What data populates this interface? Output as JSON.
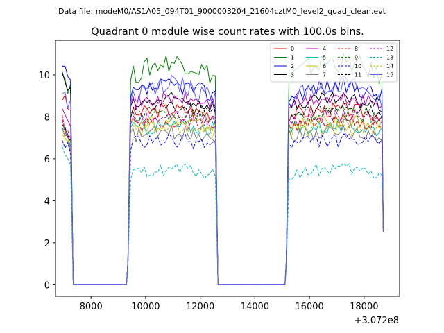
{
  "chart_data": {
    "type": "line",
    "suptitle": "Data file: modeM0/AS1A05_094T01_9000003204_21604cztM0_level2_quad_clean.evt",
    "title": "Quadrant 0 module wise count rates with 100.0s bins.",
    "xlabel": "",
    "ylabel": "",
    "x_offset_label": "+3.072e8",
    "xlim": [
      6700,
      19300
    ],
    "ylim": [
      -0.55,
      11.65
    ],
    "x_ticks": [
      8000,
      10000,
      12000,
      14000,
      16000,
      18000
    ],
    "x_tick_labels": [
      "8000",
      "10000",
      "12000",
      "14000",
      "16000",
      "18000"
    ],
    "y_ticks": [
      0,
      2,
      4,
      6,
      8,
      10
    ],
    "y_tick_labels": [
      "0",
      "2",
      "4",
      "6",
      "8",
      "10"
    ],
    "legend_position": "top-right",
    "segments": [
      {
        "start": 6950,
        "end": 7250
      },
      {
        "start": 9450,
        "end": 12550
      },
      {
        "start": 15250,
        "end": 18650
      }
    ],
    "gap_level": 0,
    "series": [
      {
        "name": "0",
        "color": "#ff0000",
        "dash": "solid",
        "level": 8.1,
        "amp": 0.35,
        "start_level": 9.0,
        "trend": 0.3
      },
      {
        "name": "1",
        "color": "#008000",
        "dash": "solid",
        "level": 9.9,
        "amp": 0.5,
        "start_level": 10.1,
        "trend": 0.9
      },
      {
        "name": "2",
        "color": "#0000ff",
        "dash": "solid",
        "level": 9.0,
        "amp": 0.4,
        "start_level": 10.3,
        "trend": 0.6
      },
      {
        "name": "3",
        "color": "#000000",
        "dash": "solid",
        "level": 8.5,
        "amp": 0.35,
        "start_level": 9.9,
        "trend": 0.4
      },
      {
        "name": "4",
        "color": "#bf00bf",
        "dash": "solid",
        "level": 8.6,
        "amp": 0.35,
        "start_level": 8.7,
        "trend": 0.3
      },
      {
        "name": "5",
        "color": "#00bfbf",
        "dash": "solid",
        "level": 7.4,
        "amp": 0.35,
        "start_level": 7.6,
        "trend": 0.2
      },
      {
        "name": "6",
        "color": "#bfbf00",
        "dash": "solid",
        "level": 7.6,
        "amp": 0.35,
        "start_level": 7.5,
        "trend": 0.2
      },
      {
        "name": "7",
        "color": "#808080",
        "dash": "solid",
        "level": 7.1,
        "amp": 0.35,
        "start_level": 7.3,
        "trend": 0.2
      },
      {
        "name": "8",
        "color": "#ff0000",
        "dash": "dash",
        "level": 7.6,
        "amp": 0.35,
        "start_level": 7.8,
        "trend": 0.2
      },
      {
        "name": "9",
        "color": "#008000",
        "dash": "dash",
        "level": 7.9,
        "amp": 0.35,
        "start_level": 7.7,
        "trend": 0.3
      },
      {
        "name": "10",
        "color": "#0000ff",
        "dash": "dash",
        "level": 6.7,
        "amp": 0.35,
        "start_level": 7.0,
        "trend": 0.2
      },
      {
        "name": "11",
        "color": "#000000",
        "dash": "dash",
        "level": 8.2,
        "amp": 0.3,
        "start_level": 7.6,
        "trend": 0.3
      },
      {
        "name": "12",
        "color": "#bf00bf",
        "dash": "dash",
        "level": 7.8,
        "amp": 0.3,
        "start_level": 7.7,
        "trend": 0.3
      },
      {
        "name": "13",
        "color": "#00bfbf",
        "dash": "dash",
        "level": 5.2,
        "amp": 0.3,
        "start_level": 6.3,
        "trend": 0.4
      },
      {
        "name": "14",
        "color": "#bfbf00",
        "dash": "dash",
        "level": 7.3,
        "amp": 0.35,
        "start_level": 7.4,
        "trend": 0.2
      },
      {
        "name": "15",
        "color": "#6060ff",
        "dash": "solid",
        "level": 8.8,
        "amp": 0.45,
        "start_level": 9.2,
        "trend": 0.9
      }
    ]
  }
}
